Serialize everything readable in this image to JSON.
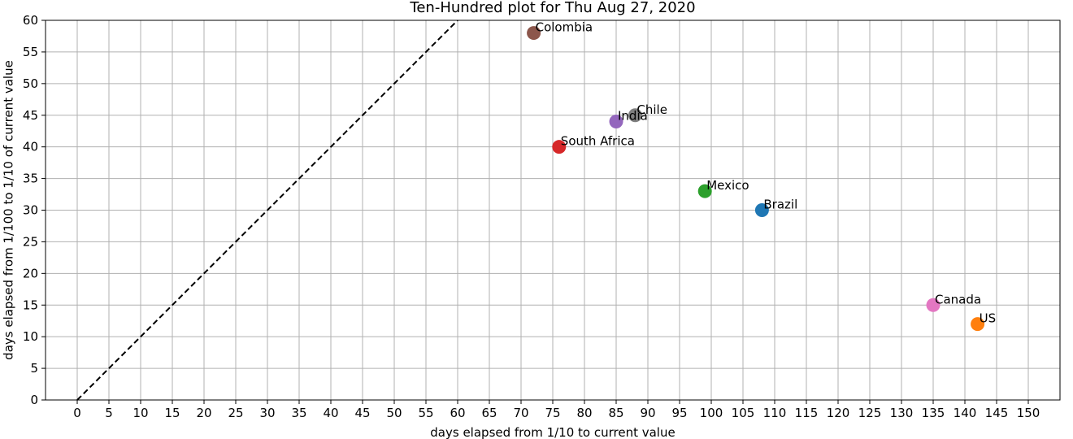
{
  "chart_data": {
    "type": "scatter",
    "title": "Ten-Hundred plot for Thu Aug 27, 2020",
    "xlabel": "days elapsed from 1/10 to current value",
    "ylabel": "days elapsed from 1/100 to 1/10 of current value",
    "xlim": [
      -5,
      155
    ],
    "ylim": [
      0,
      60
    ],
    "x_ticks": [
      0,
      5,
      10,
      15,
      20,
      25,
      30,
      35,
      40,
      45,
      50,
      55,
      60,
      65,
      70,
      75,
      80,
      85,
      90,
      95,
      100,
      105,
      110,
      115,
      120,
      125,
      130,
      135,
      140,
      145,
      150
    ],
    "y_ticks": [
      0,
      5,
      10,
      15,
      20,
      25,
      30,
      35,
      40,
      45,
      50,
      55,
      60
    ],
    "grid": true,
    "reference_line": {
      "style": "dashed",
      "color": "#000000",
      "from": [
        0,
        0
      ],
      "to": [
        60,
        60
      ]
    },
    "points": [
      {
        "label": "Brazil",
        "x": 108,
        "y": 30,
        "color": "#1f77b4"
      },
      {
        "label": "US",
        "x": 142,
        "y": 12,
        "color": "#ff7f0e"
      },
      {
        "label": "Mexico",
        "x": 99,
        "y": 33,
        "color": "#2ca02c"
      },
      {
        "label": "South Africa",
        "x": 76,
        "y": 40,
        "color": "#d62728"
      },
      {
        "label": "India",
        "x": 85,
        "y": 44,
        "color": "#9467bd"
      },
      {
        "label": "Colombia",
        "x": 72,
        "y": 58,
        "color": "#8c564b"
      },
      {
        "label": "Canada",
        "x": 135,
        "y": 15,
        "color": "#e377c2"
      },
      {
        "label": "Chile",
        "x": 88,
        "y": 45,
        "color": "#7f7f7f"
      }
    ]
  }
}
